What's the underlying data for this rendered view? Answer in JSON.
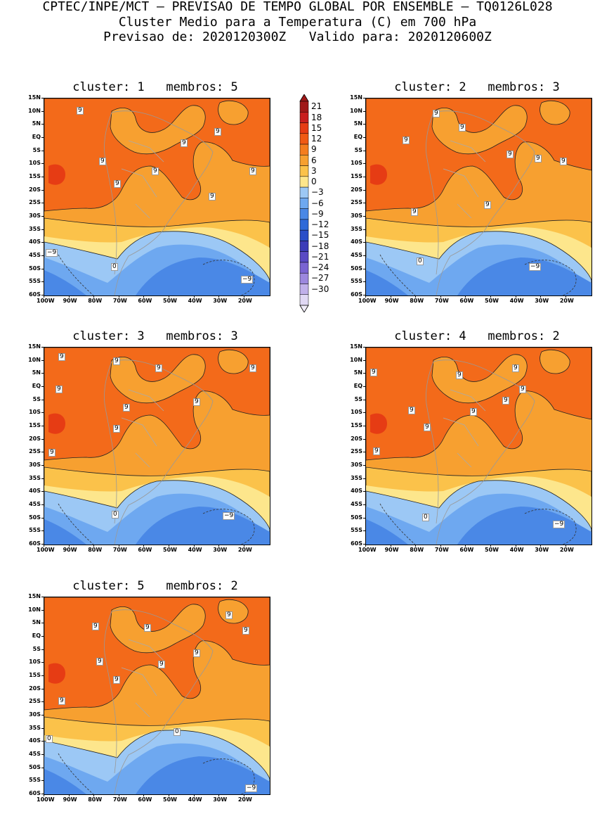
{
  "header": {
    "line1": "CPTEC/INPE/MCT — PREVISAO DE TEMPO GLOBAL POR ENSEMBLE — TQ0126L028",
    "line2": "Cluster Medio para a Temperatura (C) em 700 hPa",
    "line3": "Previsao de: 2020120300Z   Valido para: 2020120600Z"
  },
  "lat_labels": [
    "15N",
    "10N",
    "5N",
    "EQ",
    "5S",
    "10S",
    "15S",
    "20S",
    "25S",
    "30S",
    "35S",
    "40S",
    "45S",
    "50S",
    "55S",
    "60S"
  ],
  "lon_labels": [
    "100W",
    "90W",
    "80W",
    "70W",
    "60W",
    "50W",
    "40W",
    "30W",
    "20W"
  ],
  "colorbar": {
    "levels": [
      "21",
      "18",
      "15",
      "12",
      "9",
      "6",
      "3",
      "0",
      "−3",
      "−6",
      "−9",
      "−12",
      "−15",
      "−18",
      "−21",
      "−24",
      "−27",
      "−30"
    ],
    "colors": [
      "#a01818",
      "#c81e1e",
      "#e63c14",
      "#f05a14",
      "#f47d1e",
      "#f7a030",
      "#fbc24a",
      "#fde68c",
      "#9cc8f5",
      "#6ea8f0",
      "#4a88e6",
      "#2e6ad8",
      "#2a4ec8",
      "#3c3cb8",
      "#5a4ac4",
      "#7a64d2",
      "#9c88de",
      "#c0b0ea",
      "#e0d8f4"
    ]
  },
  "panels": [
    {
      "title": "cluster: 1   membros: 5",
      "labels": [
        {
          "text": "9",
          "x": 46,
          "y": 12
        },
        {
          "text": "9",
          "x": 242,
          "y": 42
        },
        {
          "text": "9",
          "x": 194,
          "y": 58
        },
        {
          "text": "9",
          "x": 78,
          "y": 84
        },
        {
          "text": "9",
          "x": 153,
          "y": 98
        },
        {
          "text": "9",
          "x": 292,
          "y": 98
        },
        {
          "text": "9",
          "x": 99,
          "y": 116
        },
        {
          "text": "9",
          "x": 234,
          "y": 134
        },
        {
          "text": "−9",
          "x": 2,
          "y": 214
        },
        {
          "text": "0",
          "x": 95,
          "y": 234
        },
        {
          "text": "−9",
          "x": 280,
          "y": 252
        }
      ]
    },
    {
      "title": "cluster: 2   membros: 3",
      "labels": [
        {
          "text": "9",
          "x": 95,
          "y": 16
        },
        {
          "text": "9",
          "x": 132,
          "y": 36
        },
        {
          "text": "9",
          "x": 52,
          "y": 54
        },
        {
          "text": "9",
          "x": 200,
          "y": 74
        },
        {
          "text": "9",
          "x": 240,
          "y": 80
        },
        {
          "text": "9",
          "x": 276,
          "y": 84
        },
        {
          "text": "9",
          "x": 168,
          "y": 146
        },
        {
          "text": "9",
          "x": 64,
          "y": 156
        },
        {
          "text": "0",
          "x": 72,
          "y": 226
        },
        {
          "text": "−9",
          "x": 232,
          "y": 234
        }
      ]
    },
    {
      "title": "cluster: 3   membros: 3",
      "labels": [
        {
          "text": "9",
          "x": 20,
          "y": 8
        },
        {
          "text": "9",
          "x": 98,
          "y": 14
        },
        {
          "text": "9",
          "x": 158,
          "y": 24
        },
        {
          "text": "9",
          "x": 292,
          "y": 24
        },
        {
          "text": "9",
          "x": 16,
          "y": 54
        },
        {
          "text": "9",
          "x": 212,
          "y": 72
        },
        {
          "text": "9",
          "x": 112,
          "y": 80
        },
        {
          "text": "9",
          "x": 98,
          "y": 110
        },
        {
          "text": "9",
          "x": 6,
          "y": 144
        },
        {
          "text": "0",
          "x": 96,
          "y": 232
        },
        {
          "text": "−9",
          "x": 254,
          "y": 234
        }
      ]
    },
    {
      "title": "cluster: 4   membros: 2",
      "labels": [
        {
          "text": "9",
          "x": 208,
          "y": 24
        },
        {
          "text": "9",
          "x": 6,
          "y": 30
        },
        {
          "text": "9",
          "x": 128,
          "y": 34
        },
        {
          "text": "9",
          "x": 218,
          "y": 54
        },
        {
          "text": "9",
          "x": 194,
          "y": 70
        },
        {
          "text": "9",
          "x": 60,
          "y": 84
        },
        {
          "text": "9",
          "x": 148,
          "y": 86
        },
        {
          "text": "9",
          "x": 82,
          "y": 108
        },
        {
          "text": "9",
          "x": 10,
          "y": 142
        },
        {
          "text": "0",
          "x": 80,
          "y": 236
        },
        {
          "text": "−9",
          "x": 266,
          "y": 246
        }
      ]
    },
    {
      "title": "cluster: 5   membros: 2",
      "labels": [
        {
          "text": "9",
          "x": 258,
          "y": 20
        },
        {
          "text": "9",
          "x": 68,
          "y": 36
        },
        {
          "text": "9",
          "x": 142,
          "y": 38
        },
        {
          "text": "9",
          "x": 282,
          "y": 42
        },
        {
          "text": "9",
          "x": 212,
          "y": 74
        },
        {
          "text": "9",
          "x": 74,
          "y": 86
        },
        {
          "text": "9",
          "x": 162,
          "y": 90
        },
        {
          "text": "9",
          "x": 98,
          "y": 112
        },
        {
          "text": "9",
          "x": 20,
          "y": 142
        },
        {
          "text": "0",
          "x": 184,
          "y": 186
        },
        {
          "text": "0",
          "x": 2,
          "y": 196
        },
        {
          "text": "−9",
          "x": 286,
          "y": 266
        }
      ]
    }
  ]
}
